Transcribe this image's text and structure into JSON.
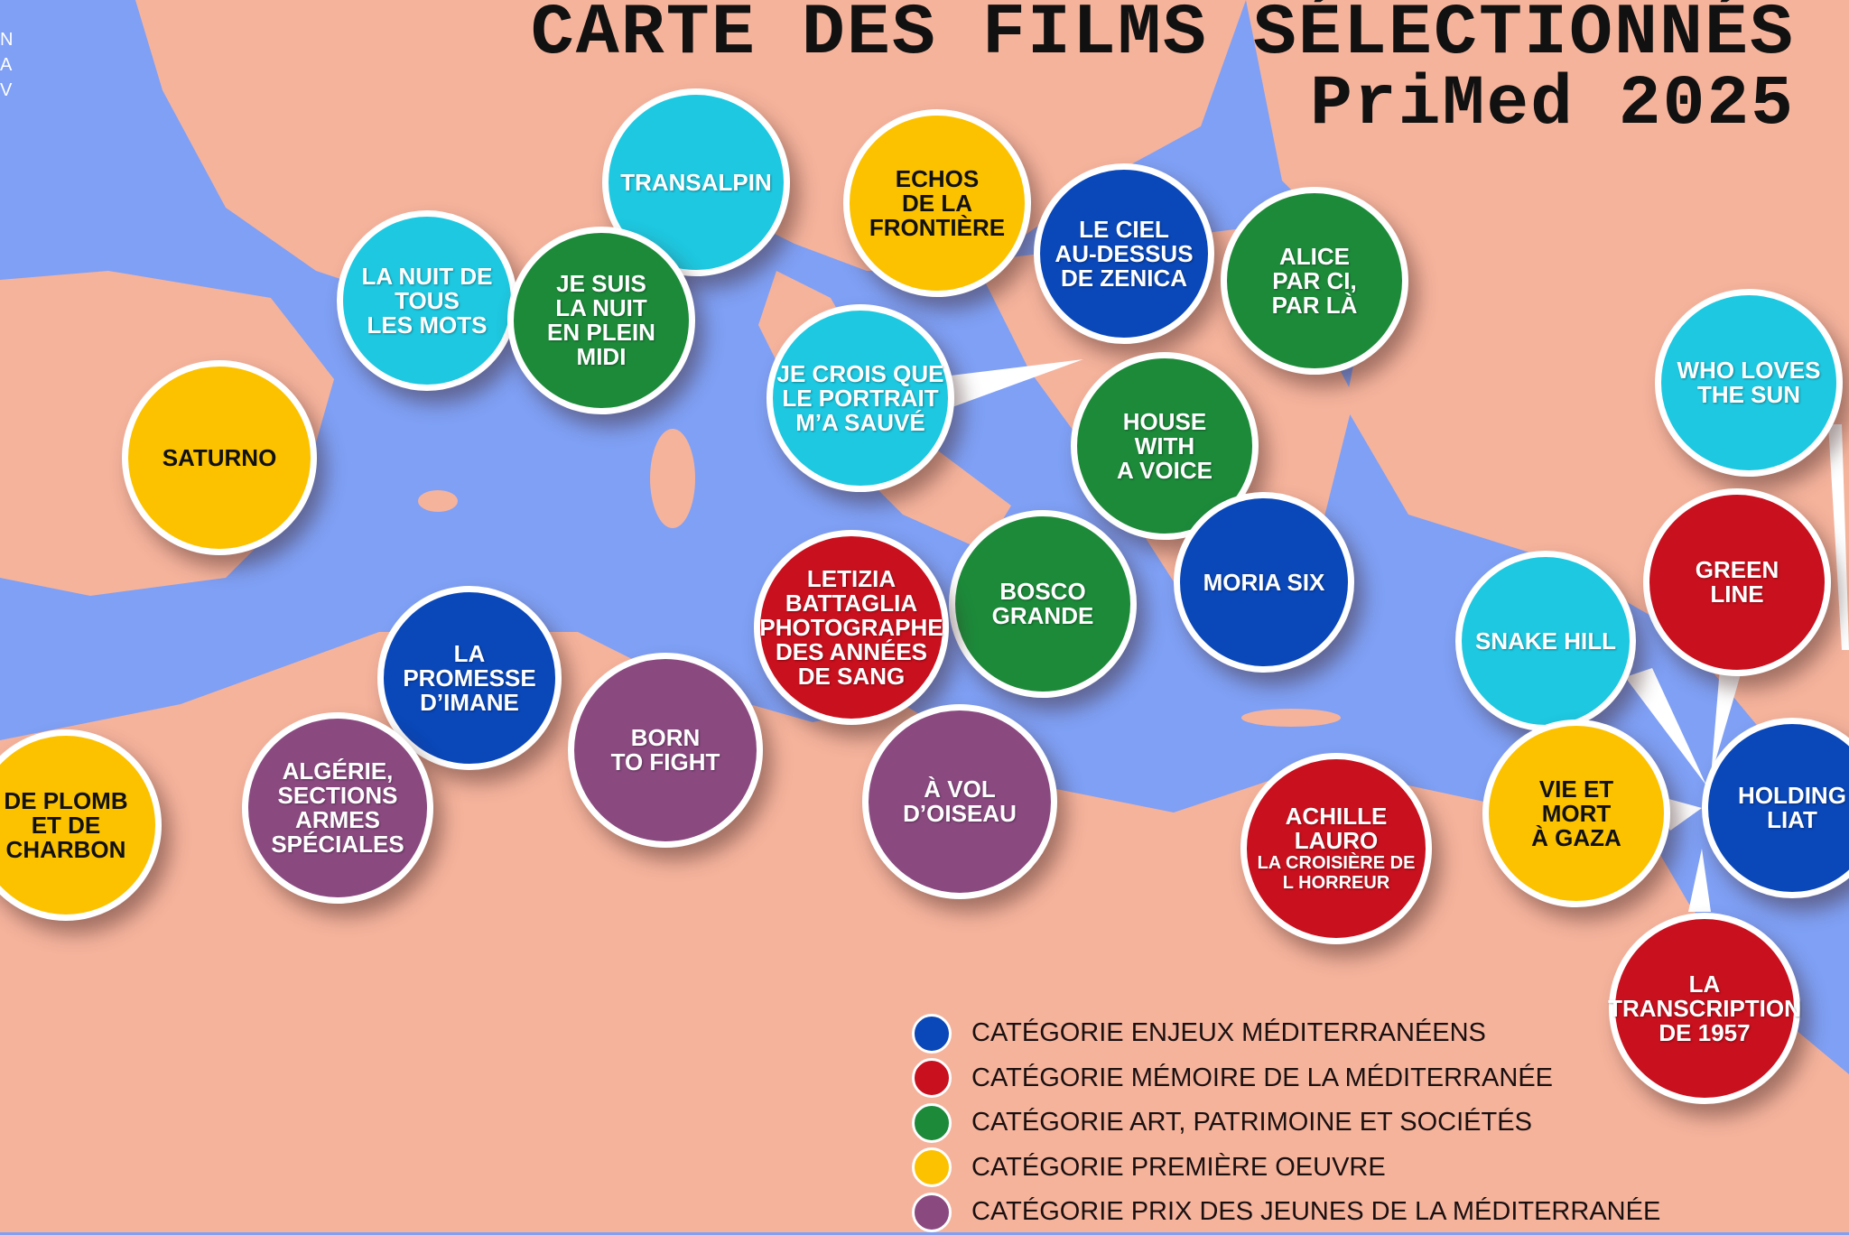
{
  "title": {
    "line1": "CARTE DES FILMS SÉLECTIONNÉS",
    "line2": "PriMed 2025"
  },
  "edge_logo_partial": [
    "N",
    "A",
    "V"
  ],
  "colors": {
    "sea": "#7fa0f5",
    "land": "#f5b39c",
    "enjeux": "#0a47b8",
    "memoire": "#c8101e",
    "art": "#1d8a3a",
    "premiere": "#fcc200",
    "jeunes": "#8a4a80",
    "cyan": "#1ec8e0"
  },
  "legend": [
    {
      "category": "enjeux",
      "label": "CATÉGORIE ENJEUX MÉDITERRANÉENS"
    },
    {
      "category": "memoire",
      "label": "CATÉGORIE MÉMOIRE DE LA MÉDITERRANÉE"
    },
    {
      "category": "art",
      "label": "CATÉGORIE ART, PATRIMOINE ET SOCIÉTÉS"
    },
    {
      "category": "premiere",
      "label": "CATÉGORIE PREMIÈRE OEUVRE"
    },
    {
      "category": "jeunes",
      "label": "CATÉGORIE PRIX DES JEUNES DE LA MÉDITERRANÉE"
    }
  ],
  "films": [
    {
      "title_lines": [
        "TRANSALPIN"
      ],
      "color": "cyan"
    },
    {
      "title_lines": [
        "ECHOS",
        "DE LA",
        "FRONTIÈRE"
      ],
      "color": "premiere"
    },
    {
      "title_lines": [
        "LE CIEL",
        "AU-DESSUS",
        "DE ZENICA"
      ],
      "color": "enjeux"
    },
    {
      "title_lines": [
        "ALICE",
        "PAR CI,",
        "PAR LÀ"
      ],
      "color": "art"
    },
    {
      "title_lines": [
        "LA NUIT DE",
        "TOUS",
        "LES MOTS"
      ],
      "color": "cyan"
    },
    {
      "title_lines": [
        "JE SUIS",
        "LA NUIT",
        "EN PLEIN",
        "MIDI"
      ],
      "color": "art"
    },
    {
      "title_lines": [
        "JE CROIS QUE",
        "LE PORTRAIT",
        "M’A SAUVÉ"
      ],
      "color": "cyan"
    },
    {
      "title_lines": [
        "SATURNO"
      ],
      "color": "premiere"
    },
    {
      "title_lines": [
        "HOUSE",
        "WITH",
        "A VOICE"
      ],
      "color": "art"
    },
    {
      "title_lines": [
        "WHO LOVES",
        "THE SUN"
      ],
      "color": "cyan"
    },
    {
      "title_lines": [
        "MORIA SIX"
      ],
      "color": "enjeux"
    },
    {
      "title_lines": [
        "BOSCO",
        "GRANDE"
      ],
      "color": "art"
    },
    {
      "title_lines": [
        "LETIZIA",
        "BATTAGLIA",
        "PHOTOGRAPHE",
        "DES ANNÉES",
        "DE SANG"
      ],
      "color": "memoire"
    },
    {
      "title_lines": [
        "GREEN",
        "LINE"
      ],
      "color": "memoire"
    },
    {
      "title_lines": [
        "SNAKE HILL"
      ],
      "color": "cyan"
    },
    {
      "title_lines": [
        "LA",
        "PROMESSE",
        "D’IMANE"
      ],
      "color": "enjeux"
    },
    {
      "title_lines": [
        "BORN",
        "TO FIGHT"
      ],
      "color": "jeunes"
    },
    {
      "title_lines": [
        "À VOL",
        "D’OISEAU"
      ],
      "color": "jeunes"
    },
    {
      "title_lines": [
        "ALGÉRIE,",
        "SECTIONS",
        "ARMES",
        "SPÉCIALES"
      ],
      "color": "jeunes"
    },
    {
      "title_lines": [
        "DE PLOMB",
        "ET DE",
        "CHARBON"
      ],
      "color": "premiere"
    },
    {
      "title_lines": [
        "ACHILLE",
        "LAURO"
      ],
      "subtitle_lines": [
        "LA CROISIÈRE DE",
        "L HORREUR"
      ],
      "color": "memoire"
    },
    {
      "title_lines": [
        "VIE ET",
        "MORT",
        "À GAZA"
      ],
      "color": "premiere"
    },
    {
      "title_lines": [
        "HOLDING",
        "LIAT"
      ],
      "color": "enjeux"
    },
    {
      "title_lines": [
        "LA",
        "TRANSCRIPTION",
        "DE 1957"
      ],
      "color": "memoire"
    }
  ]
}
